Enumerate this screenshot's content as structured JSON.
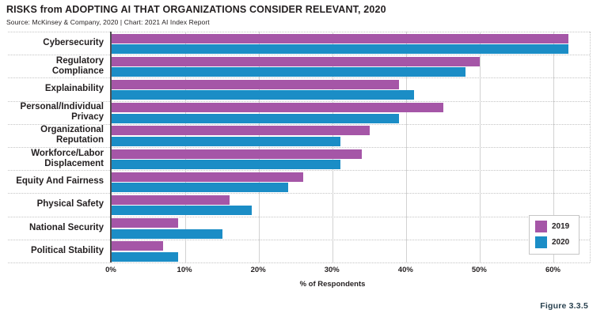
{
  "header": {
    "title": "RISKS from ADOPTING AI THAT ORGANIZATIONS CONSIDER RELEVANT, 2020",
    "source": "Source: McKinsey & Company, 2020 | Chart: 2021 AI Index Report"
  },
  "figure_label": "Figure 3.3.5",
  "chart_data": {
    "type": "bar",
    "orientation": "horizontal",
    "title": "RISKS from ADOPTING AI THAT ORGANIZATIONS CONSIDER RELEVANT, 2020",
    "categories": [
      "Cybersecurity",
      "Regulatory Compliance",
      "Explainability",
      "Personal/Individual Privacy",
      "Organizational Reputation",
      "Workforce/Labor Displacement",
      "Equity And Fairness",
      "Physical Safety",
      "National Security",
      "Political Stability"
    ],
    "category_display_lines": [
      [
        "Cybersecurity"
      ],
      [
        "Regulatory",
        "Compliance"
      ],
      [
        "Explainability"
      ],
      [
        "Personal/Individual",
        "Privacy"
      ],
      [
        "Organizational",
        "Reputation"
      ],
      [
        "Workforce/Labor",
        "Displacement"
      ],
      [
        "Equity And Fairness"
      ],
      [
        "Physical Safety"
      ],
      [
        "National Security"
      ],
      [
        "Political Stability"
      ]
    ],
    "series": [
      {
        "name": "2019",
        "color": "#a556a7",
        "values": [
          62,
          50,
          39,
          45,
          35,
          34,
          26,
          16,
          9,
          7
        ]
      },
      {
        "name": "2020",
        "color": "#1b8dc6",
        "values": [
          62,
          48,
          41,
          39,
          31,
          31,
          24,
          19,
          15,
          9
        ]
      }
    ],
    "xlabel": "% of Respondents",
    "xlim": [
      0,
      65
    ],
    "xticks": [
      {
        "value": 0,
        "label": "0%"
      },
      {
        "value": 10,
        "label": "10%"
      },
      {
        "value": 20,
        "label": "20%"
      },
      {
        "value": 30,
        "label": "30%"
      },
      {
        "value": 40,
        "label": "40%"
      },
      {
        "value": 50,
        "label": "50%"
      },
      {
        "value": 60,
        "label": "60%"
      }
    ],
    "legend_position": "bottom-right",
    "grid": "vertical solid gridlines; dotted horizontal group separators"
  },
  "colors": {
    "text": "#231f20",
    "axis_line": "#4d4d4f",
    "gridline": "#d2d2d2",
    "separator": "#c4c4c4",
    "legend_border": "#c6c6c6",
    "figure_label": "#2a4250",
    "series_2019": "#a556a7",
    "series_2020": "#1b8dc6"
  }
}
